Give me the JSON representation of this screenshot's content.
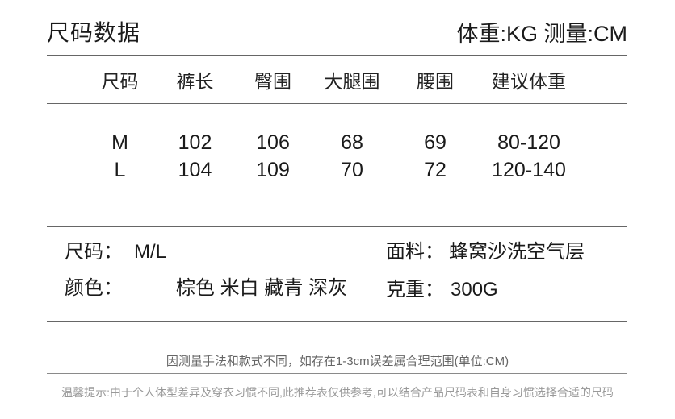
{
  "header": {
    "title": "尺码数据",
    "units": "体重:KG 测量:CM"
  },
  "table": {
    "columns": [
      "尺码",
      "裤长",
      "臀围",
      "大腿围",
      "腰围",
      "建议体重"
    ],
    "rows": [
      [
        "M",
        "102",
        "106",
        "68",
        "69",
        "80-120"
      ],
      [
        "L",
        "104",
        "109",
        "70",
        "72",
        "120-140"
      ]
    ]
  },
  "info": {
    "size": {
      "label": "尺码：",
      "value": "M/L"
    },
    "color": {
      "label": "颜色：",
      "value": "棕色 米白 藏青 深灰"
    },
    "fabric": {
      "label": "面料：",
      "value": "蜂窝沙洗空气层"
    },
    "gram": {
      "label": "克重：",
      "value": "300G"
    }
  },
  "notes": {
    "measurement": "因测量手法和款式不同，如存在1-3cm误差属合理范围(单位:CM)",
    "tip": "温馨提示:由于个人体型差异及穿衣习惯不同,此推荐表仅供参考,可以结合产品尺码表和自身习惯选择合适的尺码"
  },
  "colors": {
    "text_primary": "#1a1a1a",
    "text_note": "#666666",
    "text_tip": "#999999",
    "rule_line": "#666666",
    "background": "#ffffff"
  }
}
